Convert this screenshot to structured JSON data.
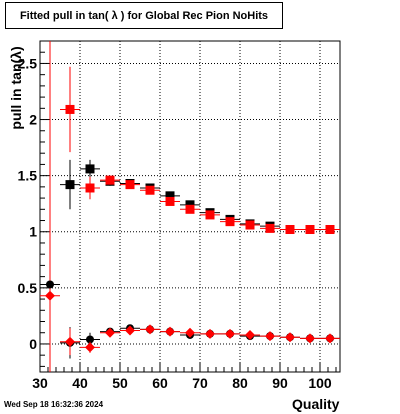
{
  "title": "Fitted pull in tan( λ ) for Global Rec Pion NoHits",
  "timestamp": "Wed Sep 18 16:32:36 2024",
  "chart_data": {
    "type": "scatter",
    "title": "Fitted pull in tan( λ ) for Global Rec Pion NoHits",
    "xlabel": "Quality",
    "ylabel": "pull in tan(λ)",
    "xlim": [
      30,
      105
    ],
    "ylim": [
      -0.25,
      2.7
    ],
    "xticks": [
      30,
      40,
      50,
      60,
      70,
      80,
      90,
      100
    ],
    "xtick_labels": [
      "30",
      "40",
      "50",
      "60",
      "70",
      "80",
      "90",
      "100"
    ],
    "yticks": [
      0,
      0.5,
      1,
      1.5,
      2,
      2.5
    ],
    "ytick_labels": [
      "0",
      "0.5",
      "1",
      "1.5",
      "2",
      "2.5"
    ],
    "grid": true,
    "vertical_line_x": 32.5,
    "series": [
      {
        "marker": "square",
        "color": "#000000",
        "points": [
          {
            "x": 37.5,
            "y": 1.42,
            "err": 0.22
          },
          {
            "x": 42.5,
            "y": 1.56,
            "err": 0.08
          },
          {
            "x": 47.5,
            "y": 1.45,
            "err": 0.04
          },
          {
            "x": 52.5,
            "y": 1.43,
            "err": 0.03
          },
          {
            "x": 57.5,
            "y": 1.39,
            "err": 0.03
          },
          {
            "x": 62.5,
            "y": 1.32,
            "err": 0.02
          },
          {
            "x": 67.5,
            "y": 1.24,
            "err": 0.02
          },
          {
            "x": 72.5,
            "y": 1.17,
            "err": 0.02
          },
          {
            "x": 77.5,
            "y": 1.11,
            "err": 0.02
          },
          {
            "x": 82.5,
            "y": 1.07,
            "err": 0.02
          },
          {
            "x": 87.5,
            "y": 1.05,
            "err": 0.02
          }
        ]
      },
      {
        "marker": "square",
        "color": "#ff0000",
        "points": [
          {
            "x": 37.5,
            "y": 2.09,
            "err": 0.38
          },
          {
            "x": 42.5,
            "y": 1.39,
            "err": 0.1
          },
          {
            "x": 47.5,
            "y": 1.46,
            "err": 0.04
          },
          {
            "x": 52.5,
            "y": 1.42,
            "err": 0.03
          },
          {
            "x": 57.5,
            "y": 1.37,
            "err": 0.03
          },
          {
            "x": 62.5,
            "y": 1.27,
            "err": 0.02
          },
          {
            "x": 67.5,
            "y": 1.2,
            "err": 0.02
          },
          {
            "x": 72.5,
            "y": 1.15,
            "err": 0.02
          },
          {
            "x": 77.5,
            "y": 1.09,
            "err": 0.02
          },
          {
            "x": 82.5,
            "y": 1.06,
            "err": 0.02
          },
          {
            "x": 87.5,
            "y": 1.03,
            "err": 0.02
          },
          {
            "x": 92.5,
            "y": 1.02,
            "err": 0.01
          },
          {
            "x": 97.5,
            "y": 1.02,
            "err": 0.01
          },
          {
            "x": 102.5,
            "y": 1.02,
            "err": 0.01
          }
        ]
      },
      {
        "marker": "circle",
        "color": "#000000",
        "points": [
          {
            "x": 32.5,
            "y": 0.53,
            "err": 0.02
          },
          {
            "x": 37.5,
            "y": 0.01,
            "err": 0.14
          },
          {
            "x": 42.5,
            "y": 0.04,
            "err": 0.06
          },
          {
            "x": 47.5,
            "y": 0.11,
            "err": 0.03
          },
          {
            "x": 52.5,
            "y": 0.14,
            "err": 0.02
          },
          {
            "x": 57.5,
            "y": 0.13,
            "err": 0.02
          },
          {
            "x": 62.5,
            "y": 0.11,
            "err": 0.02
          },
          {
            "x": 67.5,
            "y": 0.08,
            "err": 0.02
          },
          {
            "x": 72.5,
            "y": 0.09,
            "err": 0.02
          },
          {
            "x": 77.5,
            "y": 0.09,
            "err": 0.02
          },
          {
            "x": 82.5,
            "y": 0.07,
            "err": 0.02
          },
          {
            "x": 87.5,
            "y": 0.07,
            "err": 0.02
          },
          {
            "x": 92.5,
            "y": 0.06,
            "err": 0.01
          },
          {
            "x": 97.5,
            "y": 0.05,
            "err": 0.01
          },
          {
            "x": 102.5,
            "y": 0.05,
            "err": 0.01
          }
        ]
      },
      {
        "marker": "diamond",
        "color": "#ff0000",
        "points": [
          {
            "x": 32.5,
            "y": 0.43,
            "err": 0.02
          },
          {
            "x": 37.5,
            "y": 0.02,
            "err": 0.12
          },
          {
            "x": 42.5,
            "y": -0.03,
            "err": 0.05
          },
          {
            "x": 47.5,
            "y": 0.1,
            "err": 0.03
          },
          {
            "x": 52.5,
            "y": 0.12,
            "err": 0.02
          },
          {
            "x": 57.5,
            "y": 0.13,
            "err": 0.02
          },
          {
            "x": 62.5,
            "y": 0.11,
            "err": 0.02
          },
          {
            "x": 67.5,
            "y": 0.1,
            "err": 0.02
          },
          {
            "x": 72.5,
            "y": 0.09,
            "err": 0.02
          },
          {
            "x": 77.5,
            "y": 0.09,
            "err": 0.02
          },
          {
            "x": 82.5,
            "y": 0.08,
            "err": 0.02
          },
          {
            "x": 87.5,
            "y": 0.07,
            "err": 0.02
          },
          {
            "x": 92.5,
            "y": 0.06,
            "err": 0.01
          },
          {
            "x": 97.5,
            "y": 0.05,
            "err": 0.01
          },
          {
            "x": 102.5,
            "y": 0.05,
            "err": 0.01
          }
        ]
      }
    ]
  }
}
